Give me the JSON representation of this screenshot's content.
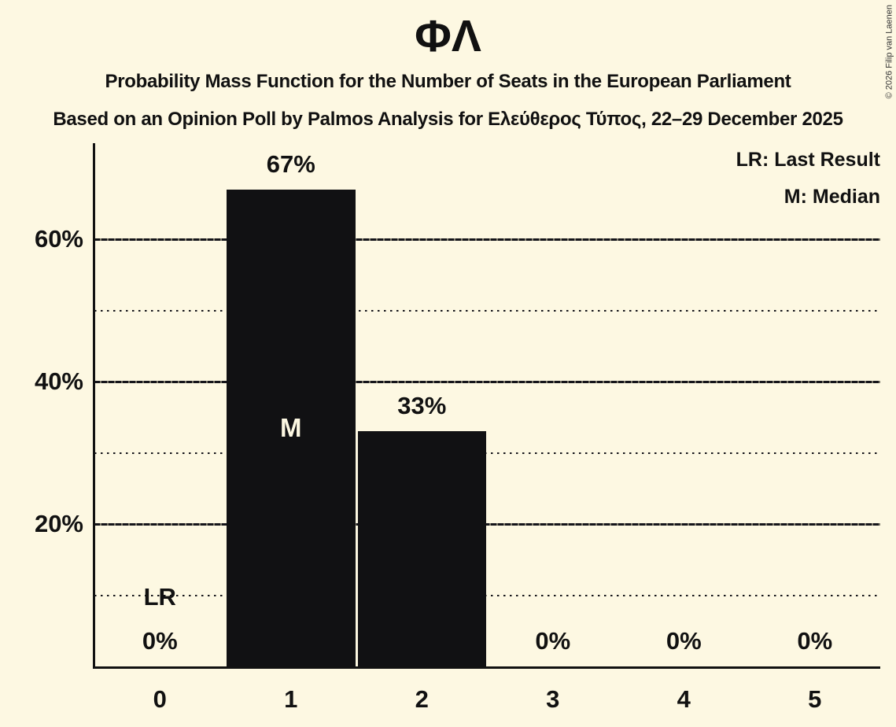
{
  "title": "ΦΛ",
  "subtitle1": "Probability Mass Function for the Number of Seats in the European Parliament",
  "subtitle2": "Based on an Opinion Poll by Palmos Analysis for Ελεύθερος Τύπος, 22–29 December 2025",
  "copyright": "© 2026 Filip van Laenen",
  "legend": {
    "lr": "LR: Last Result",
    "m": "M: Median"
  },
  "colors": {
    "background": "#fdf8e2",
    "bar": "#111113",
    "text": "#111111"
  },
  "chart_data": {
    "type": "bar",
    "title": "ΦΛ",
    "categories": [
      "0",
      "1",
      "2",
      "3",
      "4",
      "5"
    ],
    "values": [
      0,
      67,
      33,
      0,
      0,
      0
    ],
    "value_labels": [
      "0%",
      "67%",
      "33%",
      "0%",
      "0%",
      "0%"
    ],
    "xlabel": "",
    "ylabel": "",
    "ylim": [
      0,
      73.5
    ],
    "y_tick_labels": [
      {
        "value": 20,
        "label": "20%"
      },
      {
        "value": 40,
        "label": "40%"
      },
      {
        "value": 60,
        "label": "60%"
      }
    ],
    "y_solid_gridlines": [
      20,
      40,
      60
    ],
    "y_dotted_gridlines": [
      10,
      30,
      50
    ],
    "grid": "horizontal",
    "legend_position": "top-right",
    "legend_entries": [
      "LR: Last Result",
      "M: Median"
    ],
    "annotations": [
      {
        "category_index": 0,
        "label": "LR",
        "placement": "above_value_label"
      },
      {
        "category_index": 1,
        "label": "M",
        "placement": "inside_bar"
      }
    ]
  }
}
